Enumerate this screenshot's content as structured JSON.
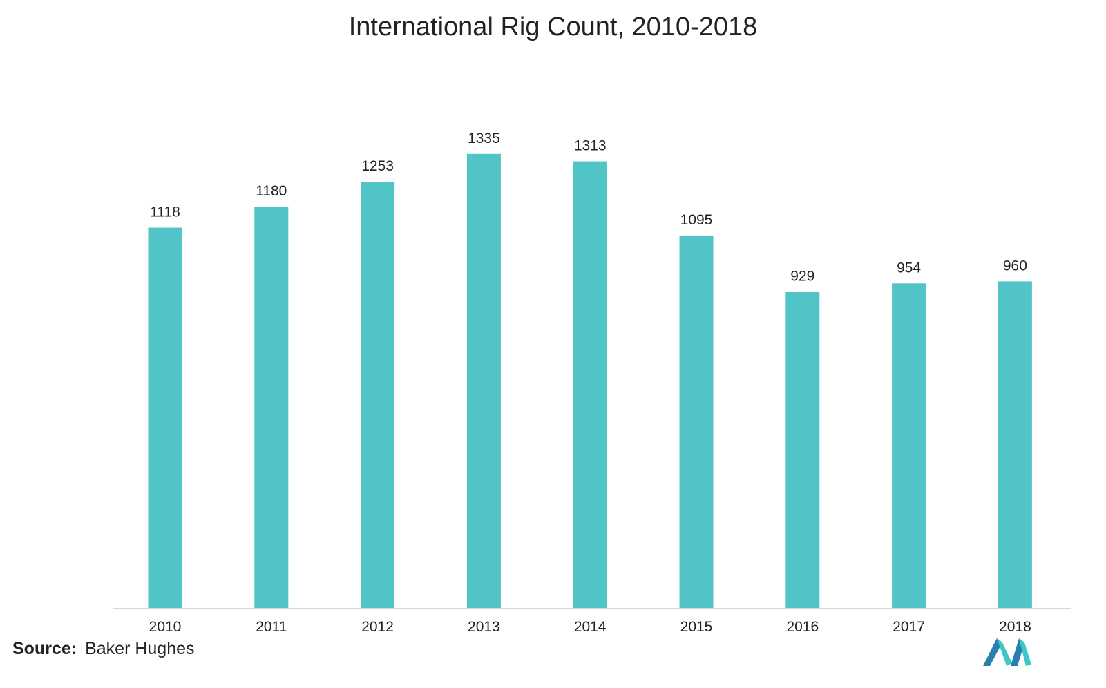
{
  "chart_data": {
    "type": "bar",
    "title": "International Rig Count, 2010-2018",
    "categories": [
      "2010",
      "2011",
      "2012",
      "2013",
      "2014",
      "2015",
      "2016",
      "2017",
      "2018"
    ],
    "values": [
      1118,
      1180,
      1253,
      1335,
      1313,
      1095,
      929,
      954,
      960
    ],
    "data_labels": [
      "1118",
      "1180",
      "1253",
      "1335",
      "1313",
      "1095",
      "929",
      "954",
      "960"
    ],
    "xlabel": "",
    "ylabel": "",
    "ylim": [
      0,
      1400
    ],
    "grid": false,
    "legend": "none",
    "bar_color": "#50C4C6"
  },
  "source": {
    "label": "Source:",
    "value": "Baker Hughes"
  },
  "logo": {
    "icon": "mordor-intelligence-logo-icon",
    "colors": [
      "#2B7FB0",
      "#3EC6C8"
    ]
  }
}
